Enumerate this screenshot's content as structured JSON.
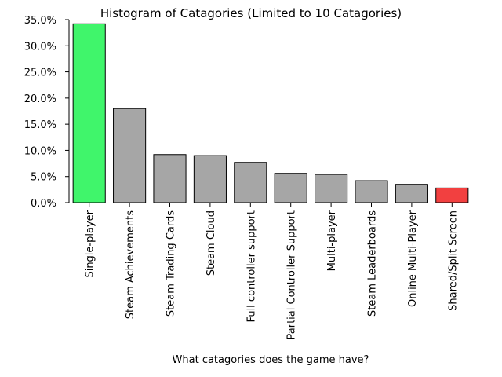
{
  "chart_data": {
    "type": "bar",
    "title": "Histogram of Catagories (Limited to 10 Catagories)",
    "xlabel": "What catagories does the game have?",
    "ylabel": "",
    "ylim": [
      0,
      0.35
    ],
    "yticks": [
      "0.0%",
      "5.0%",
      "10.0%",
      "15.0%",
      "20.0%",
      "25.0%",
      "30.0%",
      "35.0%"
    ],
    "ytick_values": [
      0,
      0.05,
      0.1,
      0.15,
      0.2,
      0.25,
      0.3,
      0.35
    ],
    "categories": [
      "Single-player",
      "Steam Achievements",
      "Steam Trading Cards",
      "Steam Cloud",
      "Full controller support",
      "Partial Controller Support",
      "Multi-player",
      "Steam Leaderboards",
      "Online Multi-Player",
      "Shared/Split Screen"
    ],
    "values": [
      0.342,
      0.18,
      0.092,
      0.09,
      0.077,
      0.056,
      0.054,
      0.042,
      0.035,
      0.028
    ],
    "colors": [
      "#40f56b",
      "#a6a6a6",
      "#a6a6a6",
      "#a6a6a6",
      "#a6a6a6",
      "#a6a6a6",
      "#a6a6a6",
      "#a6a6a6",
      "#a6a6a6",
      "#f24040"
    ],
    "grid": false
  }
}
